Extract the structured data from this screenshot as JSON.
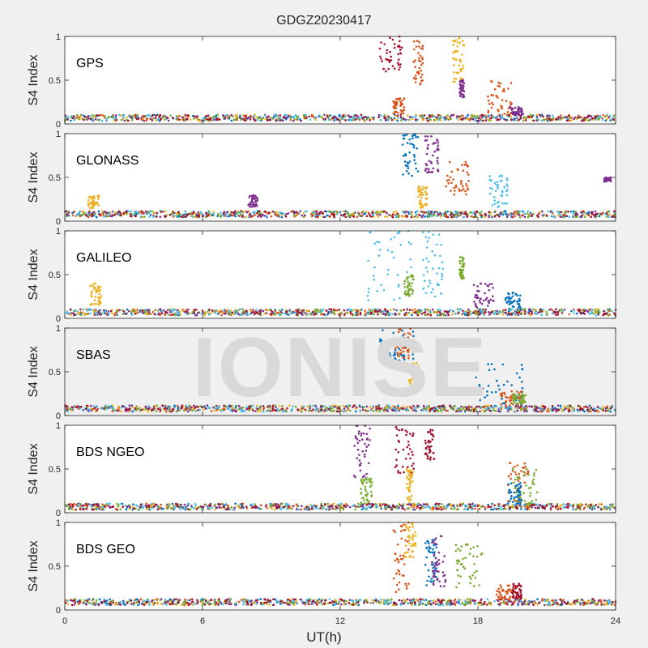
{
  "title": "GDGZ20230417",
  "watermark": "IONISE",
  "chart_data": {
    "type": "scatter",
    "title": "GDGZ20230417",
    "xlabel": "UT(h)",
    "ylabel": "S4 Index",
    "xlim": [
      0,
      24
    ],
    "ylim": [
      0,
      1
    ],
    "xticks": [
      "0",
      "6",
      "12",
      "18",
      "24"
    ],
    "yticks": [
      "0",
      "0.5",
      "1"
    ],
    "grid": false,
    "colors": [
      "#0072BD",
      "#D95319",
      "#EDB120",
      "#7E2F8E",
      "#77AC30",
      "#4DBEEE",
      "#A2142F"
    ],
    "panels": [
      {
        "name": "GPS",
        "baseline": 0.07,
        "bursts": [
          {
            "x": [
              13.7,
              14.7
            ],
            "y": [
              0.6,
              1.0
            ],
            "color": "#A2142F"
          },
          {
            "x": [
              14.3,
              14.8
            ],
            "y": [
              0.1,
              0.3
            ],
            "color": "#D95319"
          },
          {
            "x": [
              15.2,
              15.6
            ],
            "y": [
              0.45,
              0.95
            ],
            "color": "#D95319"
          },
          {
            "x": [
              16.9,
              17.4
            ],
            "y": [
              0.45,
              1.0
            ],
            "color": "#EDB120"
          },
          {
            "x": [
              17.2,
              17.4
            ],
            "y": [
              0.3,
              0.5
            ],
            "color": "#7E2F8E"
          },
          {
            "x": [
              18.4,
              19.5
            ],
            "y": [
              0.1,
              0.5
            ],
            "color": "#D95319"
          },
          {
            "x": [
              19.4,
              20.0
            ],
            "y": [
              0.1,
              0.2
            ],
            "color": "#7E2F8E"
          }
        ]
      },
      {
        "name": "GLONASS",
        "baseline": 0.08,
        "bursts": [
          {
            "x": [
              1.0,
              1.5
            ],
            "y": [
              0.15,
              0.3
            ],
            "color": "#EDB120"
          },
          {
            "x": [
              8.0,
              8.4
            ],
            "y": [
              0.15,
              0.3
            ],
            "color": "#7E2F8E"
          },
          {
            "x": [
              14.7,
              15.4
            ],
            "y": [
              0.5,
              1.0
            ],
            "color": "#0072BD"
          },
          {
            "x": [
              15.7,
              16.3
            ],
            "y": [
              0.55,
              1.0
            ],
            "color": "#7E2F8E"
          },
          {
            "x": [
              15.4,
              15.8
            ],
            "y": [
              0.15,
              0.4
            ],
            "color": "#EDB120"
          },
          {
            "x": [
              16.6,
              17.6
            ],
            "y": [
              0.3,
              0.7
            ],
            "color": "#D95319"
          },
          {
            "x": [
              18.5,
              19.3
            ],
            "y": [
              0.15,
              0.55
            ],
            "color": "#4DBEEE"
          },
          {
            "x": [
              23.5,
              23.8
            ],
            "y": [
              0.45,
              0.5
            ],
            "color": "#7E2F8E"
          }
        ]
      },
      {
        "name": "GALILEO",
        "baseline": 0.07,
        "bursts": [
          {
            "x": [
              1.1,
              1.6
            ],
            "y": [
              0.15,
              0.4
            ],
            "color": "#EDB120"
          },
          {
            "x": [
              13.2,
              15.1
            ],
            "y": [
              0.2,
              1.0
            ],
            "color": "#4DBEEE"
          },
          {
            "x": [
              14.8,
              15.2
            ],
            "y": [
              0.25,
              0.5
            ],
            "color": "#77AC30"
          },
          {
            "x": [
              15.6,
              16.5
            ],
            "y": [
              0.25,
              1.0
            ],
            "color": "#4DBEEE"
          },
          {
            "x": [
              17.2,
              17.4
            ],
            "y": [
              0.45,
              0.7
            ],
            "color": "#77AC30"
          },
          {
            "x": [
              17.8,
              18.7
            ],
            "y": [
              0.1,
              0.4
            ],
            "color": "#7E2F8E"
          },
          {
            "x": [
              19.2,
              19.9
            ],
            "y": [
              0.1,
              0.3
            ],
            "color": "#0072BD"
          }
        ]
      },
      {
        "name": "SBAS",
        "baseline": 0.08,
        "bursts": [
          {
            "x": [
              13.7,
              15.3
            ],
            "y": [
              0.6,
              1.0
            ],
            "color": "#0072BD"
          },
          {
            "x": [
              14.4,
              15.1
            ],
            "y": [
              0.65,
              1.0
            ],
            "color": "#D95319"
          },
          {
            "x": [
              15.0,
              15.4
            ],
            "y": [
              0.3,
              0.6
            ],
            "color": "#EDB120"
          },
          {
            "x": [
              17.9,
              20.0
            ],
            "y": [
              0.1,
              0.6
            ],
            "color": "#0072BD"
          },
          {
            "x": [
              19.0,
              20.0
            ],
            "y": [
              0.12,
              0.28
            ],
            "color": "#D95319"
          },
          {
            "x": [
              19.5,
              20.1
            ],
            "y": [
              0.12,
              0.25
            ],
            "color": "#77AC30"
          }
        ]
      },
      {
        "name": "BDS NGEO",
        "baseline": 0.07,
        "bursts": [
          {
            "x": [
              12.6,
              13.3
            ],
            "y": [
              0.4,
              1.0
            ],
            "color": "#7E2F8E"
          },
          {
            "x": [
              12.9,
              13.4
            ],
            "y": [
              0.1,
              0.4
            ],
            "color": "#77AC30"
          },
          {
            "x": [
              14.4,
              15.2
            ],
            "y": [
              0.4,
              1.0
            ],
            "color": "#A2142F"
          },
          {
            "x": [
              14.9,
              15.2
            ],
            "y": [
              0.1,
              0.5
            ],
            "color": "#EDB120"
          },
          {
            "x": [
              15.7,
              16.1
            ],
            "y": [
              0.6,
              0.95
            ],
            "color": "#A2142F"
          },
          {
            "x": [
              19.3,
              20.2
            ],
            "y": [
              0.1,
              0.6
            ],
            "color": "#D95319"
          },
          {
            "x": [
              19.5,
              20.6
            ],
            "y": [
              0.1,
              0.5
            ],
            "color": "#77AC30"
          },
          {
            "x": [
              19.3,
              19.9
            ],
            "y": [
              0.1,
              0.35
            ],
            "color": "#0072BD"
          }
        ]
      },
      {
        "name": "BDS GEO",
        "baseline": 0.09,
        "bursts": [
          {
            "x": [
              14.3,
              15.0
            ],
            "y": [
              0.2,
              1.0
            ],
            "color": "#D95319"
          },
          {
            "x": [
              14.8,
              15.3
            ],
            "y": [
              0.6,
              1.0
            ],
            "color": "#EDB120"
          },
          {
            "x": [
              15.7,
              16.2
            ],
            "y": [
              0.25,
              0.8
            ],
            "color": "#0072BD"
          },
          {
            "x": [
              16.0,
              16.6
            ],
            "y": [
              0.25,
              0.85
            ],
            "color": "#7E2F8E"
          },
          {
            "x": [
              17.0,
              18.2
            ],
            "y": [
              0.25,
              0.75
            ],
            "color": "#77AC30"
          },
          {
            "x": [
              18.8,
              19.7
            ],
            "y": [
              0.1,
              0.3
            ],
            "color": "#D95319"
          },
          {
            "x": [
              19.5,
              19.9
            ],
            "y": [
              0.12,
              0.3
            ],
            "color": "#A2142F"
          }
        ]
      }
    ]
  }
}
